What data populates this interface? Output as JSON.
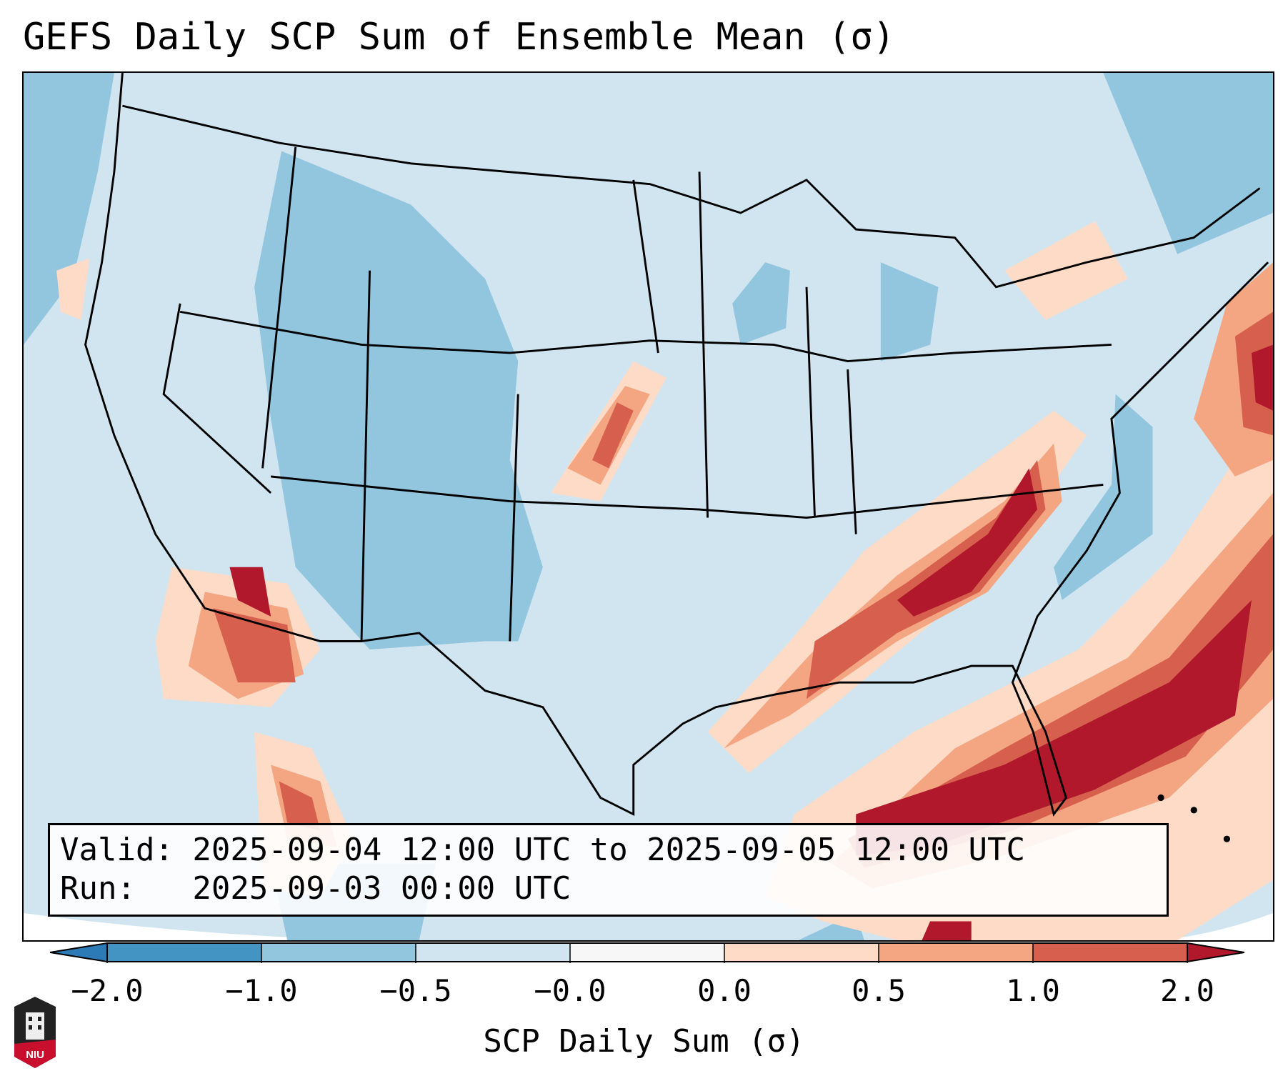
{
  "title": "GEFS Daily SCP Sum of Ensemble Mean (σ)",
  "info": {
    "valid_line": "Valid: 2025-09-04 12:00 UTC to 2025-09-05 12:00 UTC",
    "run_line": "Run:   2025-09-03 00:00 UTC"
  },
  "colorbar": {
    "label": "SCP Daily Sum (σ)",
    "ticks": [
      "−2.0",
      "−1.0",
      "−0.5",
      "−0.0",
      "0.0",
      "0.5",
      "1.0",
      "2.0"
    ],
    "colors": [
      "#2c7bb6",
      "#92c5de",
      "#d1e5f0",
      "#f7f7f7",
      "#fddbc7",
      "#f4a582",
      "#d6604d",
      "#b2182b"
    ],
    "extend": "both"
  },
  "logo": {
    "text": "NIU"
  }
}
